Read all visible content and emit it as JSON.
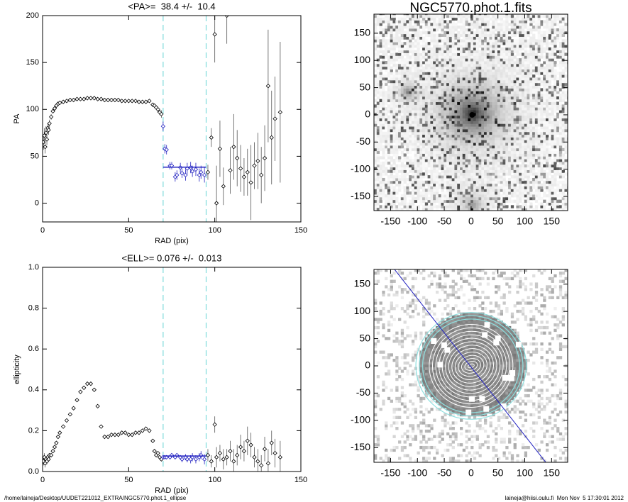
{
  "chart_data": [
    {
      "type": "scatter",
      "title": "<PA>=  38.4 +/-  10.4",
      "x_label": "RAD (pix)",
      "y_label": "PA",
      "x": [
        0.5,
        1,
        1.5,
        2,
        2.5,
        3,
        3.5,
        4,
        5,
        6,
        7,
        8,
        9,
        10,
        12,
        14,
        16,
        18,
        20,
        22,
        24,
        26,
        28,
        30,
        32,
        34,
        36,
        38,
        40,
        42,
        44,
        46,
        48,
        50,
        52,
        54,
        56,
        58,
        60,
        62,
        64,
        65,
        66,
        67,
        68,
        69,
        70,
        71,
        72,
        74,
        75,
        77,
        78,
        80,
        81,
        83,
        84,
        86,
        87,
        89,
        91,
        92,
        94,
        96,
        98,
        100,
        101,
        103,
        105,
        107,
        109,
        111,
        113,
        115,
        117,
        119,
        121,
        123,
        125,
        127,
        129,
        131,
        133,
        135,
        138
      ],
      "values": [
        65,
        72,
        60,
        75,
        68,
        80,
        78,
        85,
        92,
        98,
        101,
        104,
        106,
        107,
        108,
        109,
        110,
        110,
        111,
        111,
        111,
        112,
        112,
        112,
        111,
        111,
        110,
        110,
        110,
        110,
        110,
        109,
        109,
        109,
        109,
        109,
        108,
        108,
        108,
        109,
        105,
        104,
        102,
        100,
        97,
        95,
        82,
        58,
        57,
        40,
        40,
        28,
        30,
        38,
        32,
        30,
        37,
        38,
        34,
        36,
        30,
        33,
        30,
        33,
        70,
        180,
        0,
        58,
        18,
        200,
        35,
        60,
        48,
        37,
        28,
        33,
        22,
        40,
        45,
        30,
        48,
        125,
        70,
        90,
        97
      ],
      "errors": [
        8,
        8,
        7,
        7,
        6,
        5,
        5,
        4,
        3,
        2,
        2,
        1,
        1,
        1,
        1,
        1,
        1,
        1,
        1,
        1,
        1,
        1,
        1,
        1,
        1,
        1,
        1,
        1,
        1,
        1,
        1,
        1,
        1,
        1,
        1,
        1,
        1,
        1,
        1,
        1,
        2,
        2,
        2,
        3,
        3,
        4,
        5,
        5,
        5,
        4,
        4,
        5,
        5,
        5,
        5,
        6,
        6,
        6,
        6,
        7,
        7,
        7,
        8,
        8,
        10,
        30,
        40,
        30,
        20,
        30,
        25,
        35,
        30,
        25,
        20,
        25,
        40,
        25,
        30,
        30,
        35,
        60,
        50,
        45,
        75
      ],
      "color": "#000000",
      "fit_color": "#2020c0",
      "xlim": [
        0,
        150
      ],
      "ylim": [
        -20,
        200
      ],
      "xticks": [
        0,
        50,
        100,
        150
      ],
      "yticks": [
        0,
        50,
        100,
        150,
        200
      ],
      "vlines": [
        70,
        95
      ],
      "vline_color": "#7fdcdc",
      "fit_line": {
        "y": 38.4,
        "x": [
          70,
          95
        ]
      }
    },
    {
      "type": "scatter",
      "title": "<ELL>= 0.076 +/-  0.013",
      "x_label": "RAD (pix)",
      "y_label": "ellipticity",
      "x": [
        0.5,
        1,
        1.5,
        2,
        2.5,
        3,
        3.5,
        4,
        5,
        6,
        7,
        8,
        9,
        10,
        12,
        14,
        16,
        18,
        20,
        22,
        24,
        26,
        28,
        30,
        32,
        34,
        36,
        38,
        40,
        42,
        44,
        46,
        48,
        50,
        52,
        54,
        56,
        58,
        60,
        62,
        64,
        65,
        66,
        67,
        68,
        69,
        70,
        71,
        72,
        74,
        75,
        77,
        78,
        80,
        81,
        83,
        84,
        86,
        87,
        89,
        91,
        92,
        94,
        96,
        98,
        100,
        101,
        103,
        105,
        107,
        109,
        111,
        113,
        115,
        117,
        119,
        121,
        123,
        125,
        127,
        129,
        131,
        133,
        135,
        138
      ],
      "values": [
        0.05,
        0.07,
        0.04,
        0.06,
        0.05,
        0.07,
        0.06,
        0.08,
        0.08,
        0.1,
        0.12,
        0.14,
        0.17,
        0.19,
        0.22,
        0.25,
        0.28,
        0.31,
        0.35,
        0.39,
        0.41,
        0.43,
        0.43,
        0.4,
        0.32,
        0.22,
        0.17,
        0.17,
        0.18,
        0.18,
        0.18,
        0.19,
        0.19,
        0.18,
        0.18,
        0.19,
        0.19,
        0.2,
        0.21,
        0.2,
        0.15,
        0.1,
        0.08,
        0.09,
        0.07,
        0.06,
        0.07,
        0.07,
        0.07,
        0.07,
        0.08,
        0.07,
        0.08,
        0.07,
        0.06,
        0.07,
        0.06,
        0.06,
        0.07,
        0.06,
        0.07,
        0.08,
        0.06,
        0.08,
        0.05,
        0.23,
        0.07,
        0.09,
        0.06,
        0.07,
        0.1,
        0.05,
        0.08,
        0.12,
        0.1,
        0.15,
        0.13,
        0.07,
        0.05,
        0.03,
        0.11,
        0.04,
        0.14,
        0.09,
        0.07
      ],
      "errors": [
        0.02,
        0.02,
        0.02,
        0.015,
        0.015,
        0.01,
        0.01,
        0.01,
        0.01,
        0.01,
        0.01,
        0.01,
        0.01,
        0.01,
        0.005,
        0.005,
        0.005,
        0.005,
        0.005,
        0.005,
        0.005,
        0.005,
        0.005,
        0.005,
        0.005,
        0.005,
        0.005,
        0.005,
        0.005,
        0.005,
        0.005,
        0.005,
        0.005,
        0.005,
        0.005,
        0.005,
        0.005,
        0.005,
        0.005,
        0.005,
        0.01,
        0.01,
        0.01,
        0.01,
        0.01,
        0.01,
        0.01,
        0.01,
        0.01,
        0.01,
        0.01,
        0.01,
        0.01,
        0.01,
        0.015,
        0.015,
        0.015,
        0.02,
        0.02,
        0.02,
        0.02,
        0.02,
        0.025,
        0.03,
        0.03,
        0.04,
        0.05,
        0.04,
        0.05,
        0.04,
        0.05,
        0.06,
        0.05,
        0.06,
        0.05,
        0.07,
        0.06,
        0.05,
        0.06,
        0.05,
        0.06,
        0.07,
        0.06,
        0.07,
        0.08
      ],
      "color": "#000000",
      "fit_color": "#2020c0",
      "xlim": [
        0,
        150
      ],
      "ylim": [
        0,
        1
      ],
      "xticks": [
        0,
        50,
        100,
        150
      ],
      "yticks": [
        {
          "value": 0,
          "label": "0.0"
        },
        0.2,
        0.4,
        0.6,
        0.8,
        {
          "value": 1,
          "label": "1.0"
        }
      ],
      "vlines": [
        70,
        95
      ],
      "vline_color": "#7fdcdc",
      "fit_line": {
        "y": 0.076,
        "x": [
          70,
          95
        ]
      }
    },
    {
      "type": "image",
      "title": "NGC5770.phot.1.fits",
      "xlim": [
        -181,
        180
      ],
      "ylim": [
        -176,
        185
      ],
      "xticks": [
        -150,
        -100,
        -50,
        0,
        50,
        100,
        150
      ],
      "yticks": [
        -150,
        -100,
        -50,
        0,
        50,
        100,
        150
      ]
    },
    {
      "type": "image_contours",
      "xlim": [
        -181,
        180
      ],
      "ylim": [
        -177,
        177
      ],
      "xticks": [
        -150,
        -100,
        -50,
        0,
        50,
        100,
        150
      ],
      "yticks": [
        -150,
        -100,
        -50,
        0,
        50,
        100,
        150
      ]
    }
  ],
  "footer": {
    "left": "/home/laineja/Desktop/UUDET221012_EXTRA/NGC5770.phot.1_ellipse",
    "right": "laineja@hiisi.oulu.fi  Mon Nov  5 17:30:01 2012"
  }
}
